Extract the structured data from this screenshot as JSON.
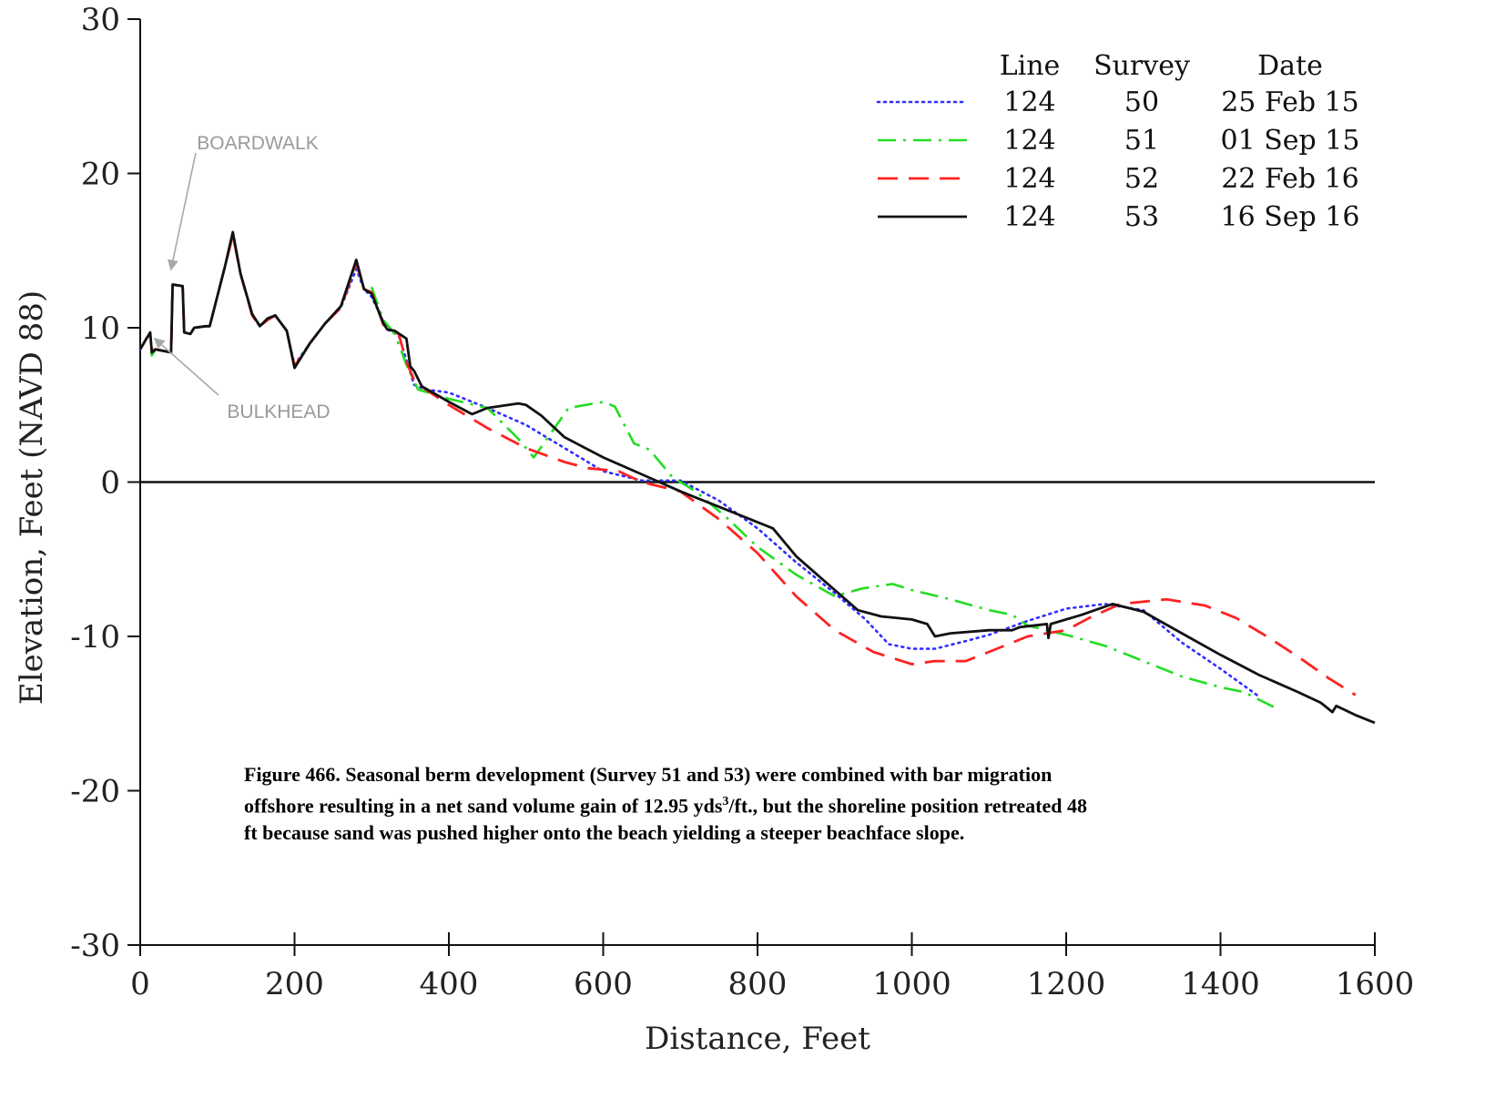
{
  "chart_data": {
    "type": "line",
    "title": "",
    "xlabel": "Distance, Feet",
    "ylabel": "Elevation, Feet (NAVD 88)",
    "xlim": [
      0,
      1600
    ],
    "ylim": [
      -30,
      30
    ],
    "xticks": [
      0,
      200,
      400,
      600,
      800,
      1000,
      1200,
      1400,
      1600
    ],
    "yticks": [
      30,
      20,
      10,
      0,
      -10,
      -20,
      -30
    ],
    "grid": false,
    "legend_position": "top-right",
    "legend_headers": [
      "Line",
      "Survey",
      "Date"
    ],
    "series": [
      {
        "line": "124",
        "survey": "50",
        "date": "25 Feb 15",
        "color": "#2f2fff",
        "dash": "dotted",
        "points": [
          [
            0,
            8.6
          ],
          [
            8,
            9.3
          ],
          [
            13,
            9.6
          ],
          [
            15,
            8.5
          ],
          [
            20,
            8.6
          ],
          [
            40,
            8.4
          ],
          [
            42,
            12.8
          ],
          [
            55,
            12.7
          ],
          [
            57,
            9.7
          ],
          [
            65,
            9.6
          ],
          [
            70,
            10.0
          ],
          [
            85,
            10.1
          ],
          [
            90,
            10.1
          ],
          [
            110,
            14.0
          ],
          [
            120,
            16.0
          ],
          [
            130,
            13.5
          ],
          [
            145,
            10.8
          ],
          [
            155,
            10.1
          ],
          [
            165,
            10.5
          ],
          [
            175,
            10.8
          ],
          [
            190,
            9.8
          ],
          [
            200,
            7.6
          ],
          [
            220,
            9.0
          ],
          [
            240,
            10.3
          ],
          [
            260,
            11.3
          ],
          [
            280,
            13.8
          ],
          [
            290,
            12.5
          ],
          [
            300,
            12.0
          ],
          [
            315,
            10.4
          ],
          [
            320,
            9.9
          ],
          [
            335,
            9.5
          ],
          [
            345,
            7.9
          ],
          [
            355,
            6.3
          ],
          [
            370,
            6.0
          ],
          [
            400,
            5.8
          ],
          [
            450,
            4.8
          ],
          [
            500,
            3.7
          ],
          [
            550,
            2.2
          ],
          [
            600,
            0.7
          ],
          [
            650,
            0.1
          ],
          [
            700,
            0.1
          ],
          [
            750,
            -1.2
          ],
          [
            800,
            -3.0
          ],
          [
            850,
            -5.2
          ],
          [
            900,
            -7.2
          ],
          [
            940,
            -8.9
          ],
          [
            970,
            -10.5
          ],
          [
            1000,
            -10.8
          ],
          [
            1030,
            -10.8
          ],
          [
            1070,
            -10.3
          ],
          [
            1100,
            -9.9
          ],
          [
            1150,
            -9.0
          ],
          [
            1200,
            -8.2
          ],
          [
            1250,
            -7.9
          ],
          [
            1300,
            -8.3
          ],
          [
            1350,
            -10.4
          ],
          [
            1400,
            -12.1
          ],
          [
            1450,
            -13.9
          ]
        ]
      },
      {
        "line": "124",
        "survey": "51",
        "date": "01 Sep 15",
        "color": "#22dd22",
        "dash": "dashdot",
        "points": [
          [
            0,
            8.6
          ],
          [
            8,
            9.3
          ],
          [
            13,
            9.6
          ],
          [
            15,
            8.2
          ],
          [
            20,
            8.6
          ],
          [
            40,
            8.4
          ],
          [
            42,
            12.8
          ],
          [
            55,
            12.7
          ],
          [
            57,
            9.7
          ],
          [
            65,
            9.6
          ],
          [
            70,
            10.0
          ],
          [
            85,
            10.1
          ],
          [
            90,
            10.1
          ],
          [
            110,
            14.0
          ],
          [
            120,
            16.1
          ],
          [
            130,
            13.5
          ],
          [
            145,
            10.8
          ],
          [
            155,
            10.2
          ],
          [
            165,
            10.5
          ],
          [
            175,
            10.8
          ],
          [
            190,
            9.8
          ],
          [
            200,
            7.5
          ],
          [
            220,
            9.0
          ],
          [
            240,
            10.3
          ],
          [
            260,
            11.3
          ],
          [
            280,
            14.2
          ],
          [
            290,
            12.5
          ],
          [
            300,
            12.6
          ],
          [
            315,
            10.5
          ],
          [
            330,
            9.6
          ],
          [
            345,
            7.6
          ],
          [
            360,
            6.0
          ],
          [
            400,
            5.4
          ],
          [
            450,
            4.8
          ],
          [
            490,
            2.8
          ],
          [
            510,
            1.6
          ],
          [
            530,
            3.0
          ],
          [
            555,
            4.8
          ],
          [
            600,
            5.2
          ],
          [
            615,
            4.9
          ],
          [
            640,
            2.5
          ],
          [
            660,
            2.1
          ],
          [
            690,
            0.3
          ],
          [
            720,
            -0.6
          ],
          [
            760,
            -2.3
          ],
          [
            800,
            -4.2
          ],
          [
            850,
            -6.0
          ],
          [
            900,
            -7.4
          ],
          [
            935,
            -6.9
          ],
          [
            975,
            -6.6
          ],
          [
            1000,
            -7.0
          ],
          [
            1050,
            -7.6
          ],
          [
            1100,
            -8.3
          ],
          [
            1130,
            -8.6
          ],
          [
            1150,
            -9.3
          ],
          [
            1200,
            -9.9
          ],
          [
            1250,
            -10.6
          ],
          [
            1300,
            -11.6
          ],
          [
            1350,
            -12.6
          ],
          [
            1400,
            -13.3
          ],
          [
            1430,
            -13.6
          ],
          [
            1470,
            -14.6
          ]
        ]
      },
      {
        "line": "124",
        "survey": "52",
        "date": "22 Feb 16",
        "color": "#ff2222",
        "dash": "dashed",
        "points": [
          [
            0,
            8.6
          ],
          [
            8,
            9.3
          ],
          [
            13,
            9.6
          ],
          [
            15,
            8.5
          ],
          [
            20,
            8.6
          ],
          [
            40,
            8.4
          ],
          [
            42,
            12.8
          ],
          [
            55,
            12.7
          ],
          [
            57,
            9.7
          ],
          [
            65,
            9.6
          ],
          [
            70,
            10.0
          ],
          [
            85,
            10.1
          ],
          [
            90,
            10.1
          ],
          [
            110,
            14.0
          ],
          [
            120,
            16.0
          ],
          [
            130,
            13.5
          ],
          [
            145,
            10.8
          ],
          [
            155,
            10.1
          ],
          [
            165,
            10.5
          ],
          [
            175,
            10.8
          ],
          [
            190,
            9.8
          ],
          [
            200,
            7.5
          ],
          [
            220,
            9.0
          ],
          [
            240,
            10.3
          ],
          [
            260,
            11.3
          ],
          [
            280,
            14.2
          ],
          [
            290,
            12.5
          ],
          [
            300,
            12.3
          ],
          [
            315,
            10.2
          ],
          [
            320,
            10.0
          ],
          [
            335,
            9.6
          ],
          [
            345,
            7.8
          ],
          [
            355,
            6.6
          ],
          [
            370,
            6.0
          ],
          [
            400,
            5.0
          ],
          [
            450,
            3.5
          ],
          [
            500,
            2.2
          ],
          [
            550,
            1.3
          ],
          [
            580,
            0.9
          ],
          [
            620,
            0.7
          ],
          [
            650,
            0.0
          ],
          [
            700,
            -0.6
          ],
          [
            750,
            -2.4
          ],
          [
            800,
            -4.6
          ],
          [
            850,
            -7.4
          ],
          [
            900,
            -9.6
          ],
          [
            950,
            -11.0
          ],
          [
            1000,
            -11.8
          ],
          [
            1030,
            -11.6
          ],
          [
            1070,
            -11.6
          ],
          [
            1100,
            -11.0
          ],
          [
            1150,
            -10.0
          ],
          [
            1200,
            -9.6
          ],
          [
            1230,
            -8.8
          ],
          [
            1270,
            -7.9
          ],
          [
            1330,
            -7.6
          ],
          [
            1380,
            -8.0
          ],
          [
            1420,
            -8.8
          ],
          [
            1460,
            -10.0
          ],
          [
            1500,
            -11.3
          ],
          [
            1540,
            -12.7
          ],
          [
            1575,
            -13.8
          ]
        ]
      },
      {
        "line": "124",
        "survey": "53",
        "date": "16 Sep 16",
        "color": "#111111",
        "dash": "solid",
        "points": [
          [
            0,
            8.6
          ],
          [
            8,
            9.3
          ],
          [
            13,
            9.7
          ],
          [
            15,
            8.4
          ],
          [
            20,
            8.6
          ],
          [
            40,
            8.4
          ],
          [
            42,
            12.8
          ],
          [
            55,
            12.7
          ],
          [
            57,
            9.7
          ],
          [
            65,
            9.6
          ],
          [
            70,
            10.0
          ],
          [
            85,
            10.1
          ],
          [
            90,
            10.1
          ],
          [
            110,
            14.0
          ],
          [
            120,
            16.2
          ],
          [
            130,
            13.5
          ],
          [
            145,
            10.9
          ],
          [
            155,
            10.1
          ],
          [
            165,
            10.6
          ],
          [
            175,
            10.8
          ],
          [
            190,
            9.8
          ],
          [
            200,
            7.4
          ],
          [
            220,
            9.0
          ],
          [
            240,
            10.3
          ],
          [
            260,
            11.4
          ],
          [
            280,
            14.4
          ],
          [
            290,
            12.5
          ],
          [
            300,
            12.2
          ],
          [
            315,
            10.3
          ],
          [
            320,
            9.9
          ],
          [
            330,
            9.8
          ],
          [
            345,
            9.3
          ],
          [
            350,
            7.5
          ],
          [
            355,
            7.2
          ],
          [
            365,
            6.2
          ],
          [
            400,
            5.2
          ],
          [
            430,
            4.4
          ],
          [
            450,
            4.8
          ],
          [
            490,
            5.1
          ],
          [
            500,
            5.0
          ],
          [
            520,
            4.3
          ],
          [
            550,
            2.9
          ],
          [
            600,
            1.6
          ],
          [
            650,
            0.5
          ],
          [
            700,
            -0.6
          ],
          [
            750,
            -1.6
          ],
          [
            800,
            -2.6
          ],
          [
            820,
            -3.0
          ],
          [
            850,
            -4.8
          ],
          [
            900,
            -7.0
          ],
          [
            930,
            -8.3
          ],
          [
            960,
            -8.7
          ],
          [
            1000,
            -8.9
          ],
          [
            1020,
            -9.2
          ],
          [
            1030,
            -10.0
          ],
          [
            1050,
            -9.8
          ],
          [
            1100,
            -9.6
          ],
          [
            1130,
            -9.6
          ],
          [
            1140,
            -9.4
          ],
          [
            1175,
            -9.2
          ],
          [
            1177,
            -10.1
          ],
          [
            1180,
            -9.2
          ],
          [
            1220,
            -8.6
          ],
          [
            1260,
            -7.9
          ],
          [
            1300,
            -8.4
          ],
          [
            1350,
            -9.8
          ],
          [
            1400,
            -11.2
          ],
          [
            1450,
            -12.5
          ],
          [
            1500,
            -13.6
          ],
          [
            1530,
            -14.3
          ],
          [
            1545,
            -14.9
          ],
          [
            1550,
            -14.5
          ],
          [
            1575,
            -15.1
          ],
          [
            1600,
            -15.6
          ]
        ]
      }
    ],
    "annotations": [
      {
        "label": "BOARDWALK",
        "target": [
          40,
          13.8
        ]
      },
      {
        "label": "BULKHEAD",
        "target": [
          12,
          9.4
        ]
      }
    ]
  },
  "caption": {
    "line1": "Figure 466.  Seasonal berm development (Survey 51 and 53) were combined with bar migration",
    "line2_pre": "offshore resulting in a net sand volume gain of 12.95 yds",
    "line2_sup": "3",
    "line2_post": "/ft., but the shoreline position retreated 48",
    "line3": "ft because sand was pushed higher onto the beach yielding a steeper beachface slope."
  }
}
